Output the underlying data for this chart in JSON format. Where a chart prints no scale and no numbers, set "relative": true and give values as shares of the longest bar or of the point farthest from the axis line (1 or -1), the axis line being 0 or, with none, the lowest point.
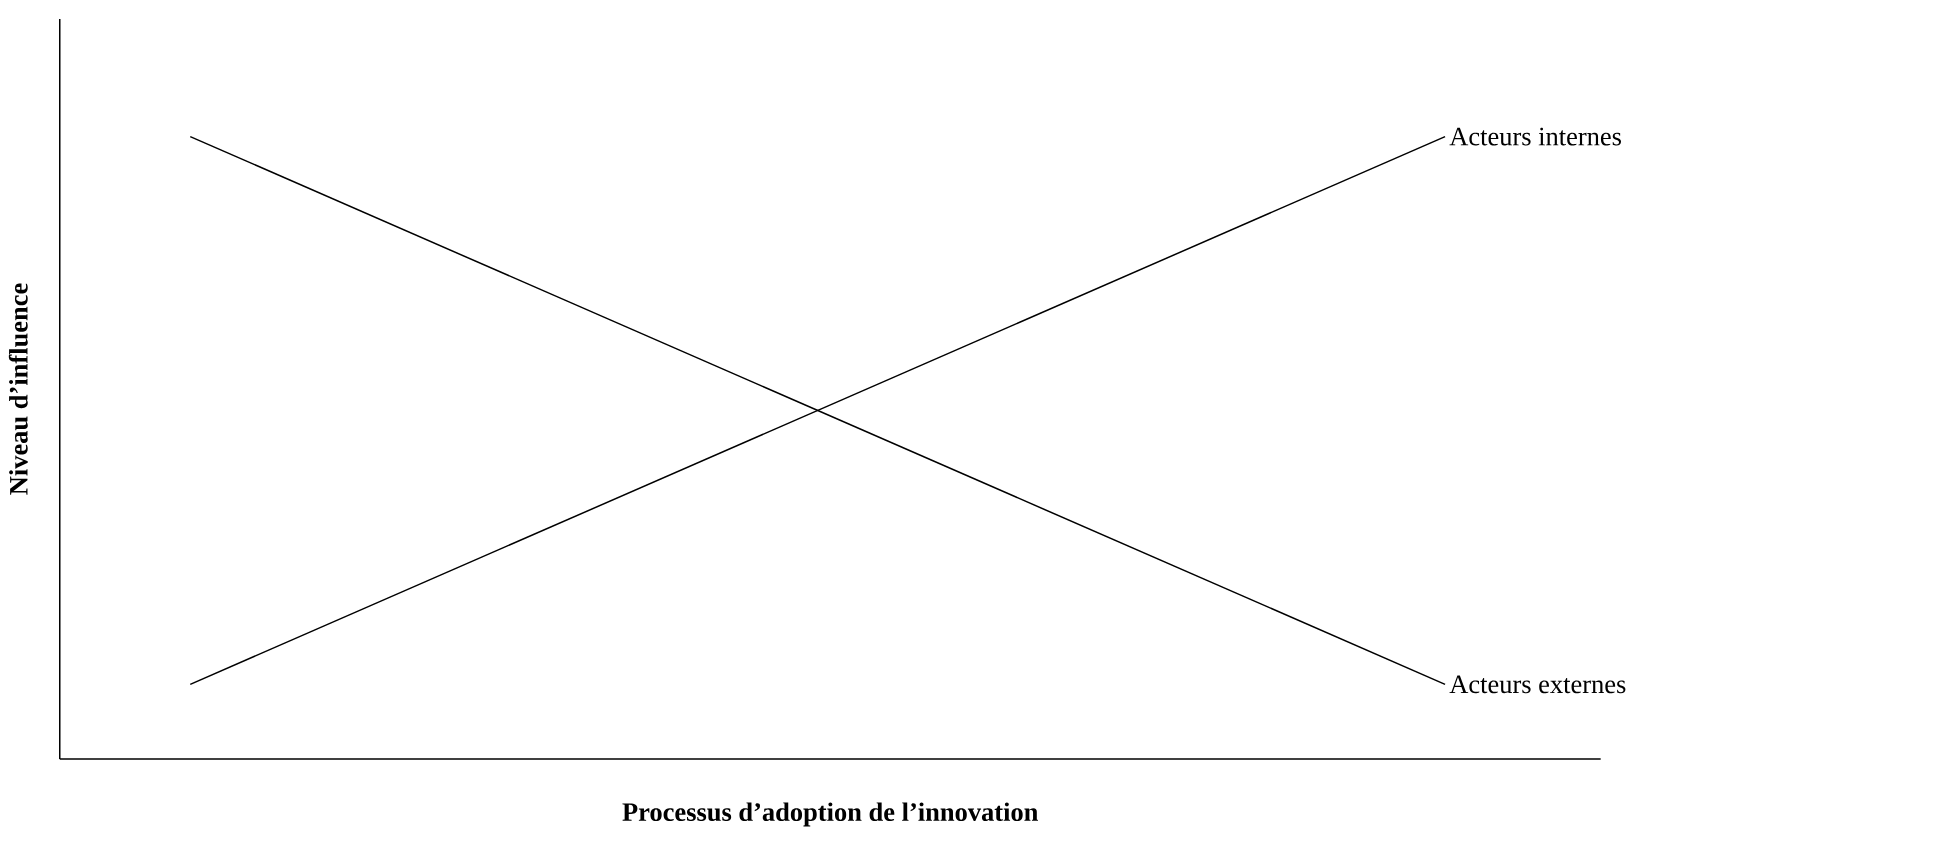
{
  "chart_data": {
    "type": "line",
    "relative": true,
    "xlabel": "Processus d’adoption de l’innovation",
    "ylabel": "Niveau d’influence",
    "categories": [
      null,
      null
    ],
    "series": [
      {
        "name": "Acteurs internes",
        "color": "#000000",
        "values": [
          0.12,
          1
        ]
      },
      {
        "name": "Acteurs externes",
        "color": "#000000",
        "values": [
          1,
          0.12
        ]
      }
    ]
  }
}
